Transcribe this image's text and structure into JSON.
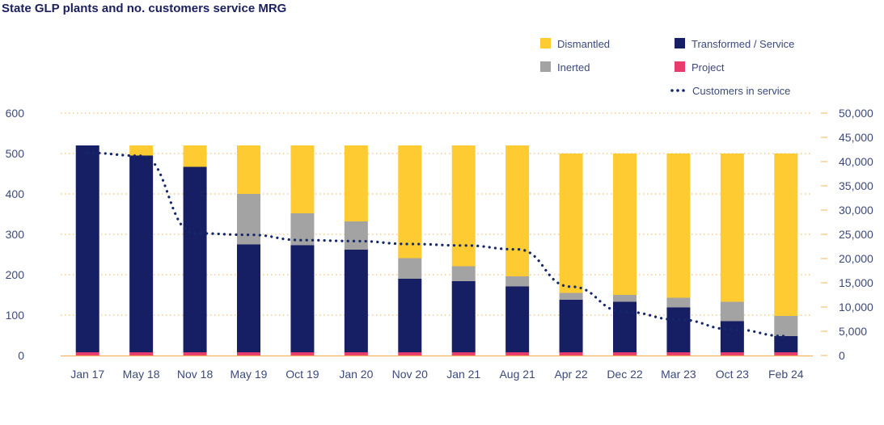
{
  "colors": {
    "dismantled": "#fecb33",
    "inerted": "#a3a3a3",
    "transformed": "#161f63",
    "project": "#e83b6e",
    "customers": "#14286a",
    "grid": "#f5b55a",
    "axis_text": "#3c4a7a"
  },
  "chart_data": {
    "type": "bar",
    "title": "State GLP plants and no. customers service MRG",
    "categories": [
      "Jan 17",
      "May 18",
      "Nov 18",
      "May 19",
      "Oct 19",
      "Jan 20",
      "Nov 20",
      "Jan 21",
      "Aug 21",
      "Apr 22",
      "Dec 22",
      "Mar 23",
      "Oct 23",
      "Feb 24"
    ],
    "stacked": true,
    "series": [
      {
        "name": "Project",
        "key": "project",
        "axis": "left",
        "values": [
          8,
          8,
          8,
          8,
          8,
          8,
          8,
          8,
          8,
          8,
          8,
          8,
          8,
          8
        ]
      },
      {
        "name": "Transformed / Service",
        "key": "transformed",
        "axis": "left",
        "values": [
          512,
          487,
          459,
          267,
          265,
          254,
          182,
          176,
          163,
          130,
          125,
          111,
          77,
          40
        ]
      },
      {
        "name": "Inerted",
        "key": "inerted",
        "axis": "left",
        "values": [
          0,
          0,
          0,
          125,
          79,
          70,
          51,
          37,
          25,
          17,
          17,
          24,
          48,
          50
        ]
      },
      {
        "name": "Dismantled",
        "key": "dismantled",
        "axis": "left",
        "values": [
          0,
          25,
          53,
          120,
          168,
          188,
          279,
          299,
          324,
          345,
          350,
          357,
          367,
          402
        ]
      },
      {
        "name": "Customers in service",
        "key": "customers",
        "type": "line",
        "axis": "right",
        "values": [
          41800,
          41200,
          25200,
          24900,
          23800,
          23600,
          23000,
          22700,
          21900,
          14200,
          9000,
          7400,
          5400,
          4000
        ]
      }
    ],
    "y_left": {
      "min": 0,
      "max": 600,
      "ticks": [
        "0",
        "100",
        "200",
        "300",
        "400",
        "500",
        "600"
      ]
    },
    "y_right": {
      "min": 0,
      "max": 50000,
      "ticks": [
        "0",
        "5,000",
        "10,000",
        "15,000",
        "20,000",
        "25,000",
        "30,000",
        "35,000",
        "40,000",
        "45,000",
        "50,000"
      ]
    },
    "legend": [
      "Dismantled",
      "Transformed / Service",
      "Inerted",
      "Project",
      "Customers in service"
    ],
    "legend_position": "top-right",
    "grid": true
  }
}
